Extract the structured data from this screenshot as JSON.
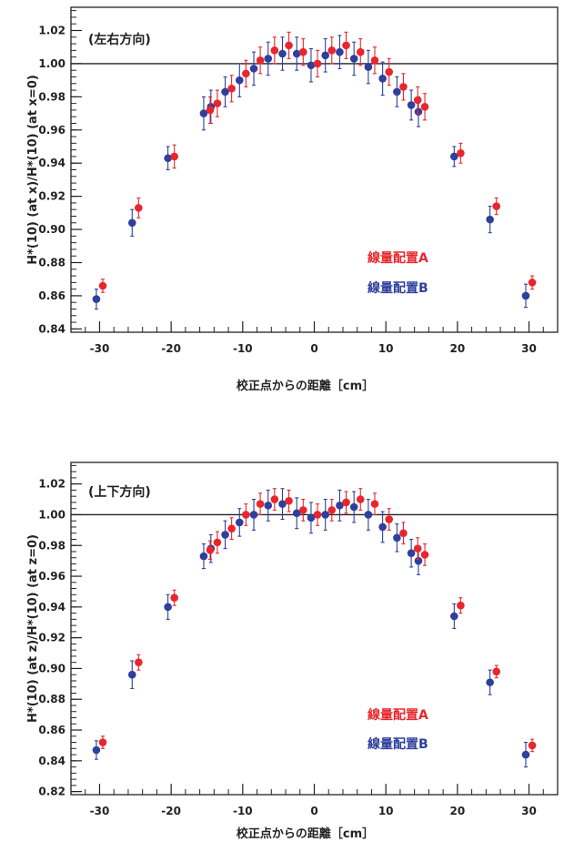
{
  "chart_data": [
    {
      "type": "scatter",
      "annotation": "(左右方向)",
      "xlabel": "校正点からの距離［cm］",
      "ylabel": "H*(10) (at x)/H*(10) (at x=0)",
      "xlim": [
        -34,
        34
      ],
      "ylim": [
        0.838,
        1.034
      ],
      "xticks": [
        -30,
        -20,
        -10,
        0,
        10,
        20,
        30
      ],
      "yticks": [
        0.84,
        0.86,
        0.88,
        0.9,
        0.92,
        0.94,
        0.96,
        0.98,
        1.0,
        1.02
      ],
      "reference_line": 1.0,
      "grid": false,
      "legend_position": "right",
      "series": [
        {
          "name": "線量配置A",
          "color": "#e8262d",
          "x": [
            -30,
            -25,
            -20,
            -15,
            -14,
            -12,
            -10,
            -8,
            -6,
            -4,
            -2,
            0,
            2,
            4,
            6,
            8,
            10,
            12,
            14,
            15,
            20,
            25,
            30
          ],
          "y": [
            0.866,
            0.913,
            0.944,
            0.972,
            0.976,
            0.985,
            0.994,
            1.002,
            1.008,
            1.011,
            1.007,
            1.0,
            1.008,
            1.011,
            1.007,
            1.002,
            0.995,
            0.986,
            0.978,
            0.974,
            0.946,
            0.914,
            0.868
          ],
          "err": [
            0.004,
            0.006,
            0.007,
            0.008,
            0.008,
            0.008,
            0.008,
            0.008,
            0.008,
            0.008,
            0.008,
            0.008,
            0.008,
            0.008,
            0.008,
            0.008,
            0.008,
            0.008,
            0.008,
            0.008,
            0.006,
            0.005,
            0.004
          ]
        },
        {
          "name": "線量配置B",
          "color": "#2e3f9c",
          "x": [
            -30,
            -25,
            -20,
            -15,
            -14,
            -12,
            -10,
            -8,
            -6,
            -4,
            -2,
            0,
            2,
            4,
            6,
            8,
            10,
            12,
            14,
            15,
            20,
            25,
            30
          ],
          "y": [
            0.858,
            0.904,
            0.943,
            0.97,
            0.974,
            0.983,
            0.99,
            0.997,
            1.003,
            1.006,
            1.006,
            0.999,
            1.005,
            1.007,
            1.003,
            0.998,
            0.991,
            0.983,
            0.975,
            0.971,
            0.944,
            0.906,
            0.86
          ],
          "err": [
            0.006,
            0.008,
            0.007,
            0.01,
            0.01,
            0.009,
            0.01,
            0.01,
            0.01,
            0.01,
            0.01,
            0.01,
            0.01,
            0.01,
            0.01,
            0.01,
            0.01,
            0.009,
            0.009,
            0.009,
            0.006,
            0.008,
            0.007
          ]
        }
      ]
    },
    {
      "type": "scatter",
      "annotation": "(上下方向)",
      "xlabel": "校正点からの距離［cm］",
      "ylabel": "H*(10) (at z)/H*(10) (at z=0)",
      "xlim": [
        -34,
        34
      ],
      "ylim": [
        0.818,
        1.034
      ],
      "xticks": [
        -30,
        -20,
        -10,
        0,
        10,
        20,
        30
      ],
      "yticks": [
        0.82,
        0.84,
        0.86,
        0.88,
        0.9,
        0.92,
        0.94,
        0.96,
        0.98,
        1.0,
        1.02
      ],
      "reference_line": 1.0,
      "grid": false,
      "legend_position": "right",
      "series": [
        {
          "name": "線量配置A",
          "color": "#e8262d",
          "x": [
            -30,
            -25,
            -20,
            -15,
            -14,
            -12,
            -10,
            -8,
            -6,
            -4,
            -2,
            0,
            2,
            4,
            6,
            8,
            10,
            12,
            14,
            15,
            20,
            25,
            30
          ],
          "y": [
            0.852,
            0.904,
            0.946,
            0.977,
            0.982,
            0.991,
            1.0,
            1.007,
            1.01,
            1.009,
            1.003,
            1.0,
            1.003,
            1.008,
            1.01,
            1.007,
            0.997,
            0.988,
            0.978,
            0.974,
            0.941,
            0.898,
            0.85
          ],
          "err": [
            0.004,
            0.005,
            0.005,
            0.006,
            0.007,
            0.007,
            0.007,
            0.007,
            0.007,
            0.007,
            0.007,
            0.007,
            0.007,
            0.007,
            0.007,
            0.007,
            0.007,
            0.007,
            0.007,
            0.007,
            0.005,
            0.004,
            0.004
          ]
        },
        {
          "name": "線量配置B",
          "color": "#2e3f9c",
          "x": [
            -30,
            -25,
            -20,
            -15,
            -14,
            -12,
            -10,
            -8,
            -6,
            -4,
            -2,
            0,
            2,
            4,
            6,
            8,
            10,
            12,
            14,
            15,
            20,
            25,
            30
          ],
          "y": [
            0.847,
            0.896,
            0.94,
            0.973,
            0.978,
            0.987,
            0.995,
            1.0,
            1.006,
            1.007,
            1.001,
            0.998,
            1.0,
            1.006,
            1.005,
            1.0,
            0.992,
            0.985,
            0.975,
            0.97,
            0.934,
            0.891,
            0.844
          ],
          "err": [
            0.006,
            0.009,
            0.008,
            0.008,
            0.009,
            0.009,
            0.009,
            0.01,
            0.01,
            0.01,
            0.01,
            0.01,
            0.01,
            0.01,
            0.01,
            0.01,
            0.01,
            0.009,
            0.009,
            0.009,
            0.008,
            0.008,
            0.008
          ]
        }
      ]
    }
  ]
}
